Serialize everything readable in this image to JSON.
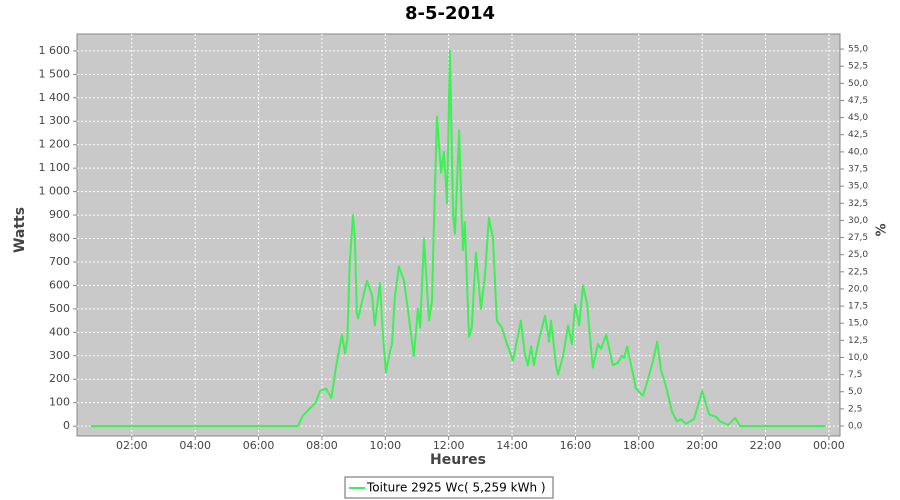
{
  "chart_data": {
    "type": "line",
    "title": "8-5-2014",
    "x_label": "Heures",
    "y_label": "Watts",
    "y2_label": "%",
    "x": [
      0.7,
      6.0,
      7.24,
      7.4,
      7.8,
      7.94,
      8.13,
      8.3,
      8.44,
      8.63,
      8.73,
      8.8,
      8.88,
      8.98,
      9.04,
      9.1,
      9.14,
      9.3,
      9.42,
      9.58,
      9.67,
      9.83,
      9.92,
      10.02,
      10.15,
      10.21,
      10.3,
      10.43,
      10.59,
      10.71,
      10.9,
      11.03,
      11.1,
      11.22,
      11.38,
      11.47,
      11.57,
      11.63,
      11.76,
      11.85,
      11.95,
      12.04,
      12.14,
      12.2,
      12.33,
      12.45,
      12.51,
      12.64,
      12.73,
      12.86,
      13.02,
      13.15,
      13.27,
      13.4,
      13.52,
      13.68,
      13.84,
      14.03,
      14.28,
      14.4,
      14.5,
      14.6,
      14.69,
      14.85,
      15.04,
      15.17,
      15.23,
      15.39,
      15.45,
      15.61,
      15.77,
      15.89,
      15.99,
      16.12,
      16.24,
      16.37,
      16.55,
      16.71,
      16.81,
      16.97,
      17.18,
      17.34,
      17.47,
      17.54,
      17.63,
      17.79,
      17.91,
      18.13,
      18.29,
      18.45,
      18.58,
      18.7,
      18.86,
      19.05,
      19.21,
      19.33,
      19.49,
      19.74,
      20.0,
      20.22,
      20.44,
      20.57,
      20.82,
      21.04,
      21.2,
      23.9
    ],
    "series": [
      {
        "name": "Toiture 2925 Wc( 5,259 kWh )",
        "color": "#3ef055",
        "values": [
          0,
          0,
          0,
          45,
          100,
          150,
          160,
          120,
          250,
          390,
          310,
          370,
          700,
          900,
          800,
          480,
          460,
          550,
          620,
          560,
          430,
          610,
          400,
          230,
          320,
          350,
          550,
          680,
          620,
          500,
          300,
          500,
          420,
          800,
          450,
          530,
          1050,
          1320,
          1080,
          1170,
          950,
          1600,
          900,
          820,
          1260,
          750,
          870,
          380,
          420,
          740,
          500,
          650,
          890,
          800,
          450,
          420,
          350,
          280,
          450,
          310,
          260,
          340,
          260,
          370,
          470,
          360,
          450,
          260,
          220,
          300,
          430,
          350,
          520,
          430,
          600,
          520,
          250,
          350,
          330,
          390,
          260,
          270,
          300,
          290,
          340,
          240,
          160,
          130,
          200,
          280,
          360,
          240,
          170,
          60,
          20,
          30,
          10,
          30,
          150,
          50,
          40,
          20,
          5,
          35,
          0,
          0
        ]
      }
    ],
    "xlim": [
      0.27,
      24.35
    ],
    "xticks": [
      {
        "value": 2,
        "label": "02:00"
      },
      {
        "value": 4,
        "label": "04:00"
      },
      {
        "value": 6,
        "label": "06:00"
      },
      {
        "value": 8,
        "label": "08:00"
      },
      {
        "value": 10,
        "label": "10:00"
      },
      {
        "value": 12,
        "label": "12:00"
      },
      {
        "value": 14,
        "label": "14:00"
      },
      {
        "value": 16,
        "label": "16:00"
      },
      {
        "value": 18,
        "label": "18:00"
      },
      {
        "value": 20,
        "label": "20:00"
      },
      {
        "value": 22,
        "label": "22:00"
      },
      {
        "value": 24,
        "label": "00:00"
      }
    ],
    "ylim": [
      -42,
      1672
    ],
    "yticks": [
      0,
      100,
      200,
      300,
      400,
      500,
      600,
      700,
      800,
      900,
      {
        "value": 1000,
        "label": "1 000"
      },
      {
        "value": 1100,
        "label": "1 100"
      },
      {
        "value": 1200,
        "label": "1 200"
      },
      {
        "value": 1300,
        "label": "1 300"
      },
      {
        "value": 1400,
        "label": "1 400"
      },
      {
        "value": 1500,
        "label": "1 500"
      },
      {
        "value": 1600,
        "label": "1 600"
      }
    ],
    "y2lim": [
      -1.46,
      57.2
    ],
    "y2ticks": [
      {
        "value": 0,
        "label": "0,0"
      },
      {
        "value": 2.5,
        "label": "2,5"
      },
      {
        "value": 5,
        "label": "5,0"
      },
      {
        "value": 7.5,
        "label": "7,5"
      },
      {
        "value": 10,
        "label": "10,0"
      },
      {
        "value": 12.5,
        "label": "12,5"
      },
      {
        "value": 15,
        "label": "15,0"
      },
      {
        "value": 17.5,
        "label": "17,5"
      },
      {
        "value": 20,
        "label": "20,0"
      },
      {
        "value": 22.5,
        "label": "22,5"
      },
      {
        "value": 25,
        "label": "25,0"
      },
      {
        "value": 27.5,
        "label": "27,5"
      },
      {
        "value": 30,
        "label": "30,0"
      },
      {
        "value": 32.5,
        "label": "32,5"
      },
      {
        "value": 35,
        "label": "35,0"
      },
      {
        "value": 37.5,
        "label": "37,5"
      },
      {
        "value": 40,
        "label": "40,0"
      },
      {
        "value": 42.5,
        "label": "42,5"
      },
      {
        "value": 45,
        "label": "45,0"
      },
      {
        "value": 47.5,
        "label": "47,5"
      },
      {
        "value": 50,
        "label": "50,0"
      },
      {
        "value": 52.5,
        "label": "52,5"
      },
      {
        "value": 55,
        "label": "55,0"
      }
    ],
    "grid": true,
    "legend": "bottom"
  }
}
